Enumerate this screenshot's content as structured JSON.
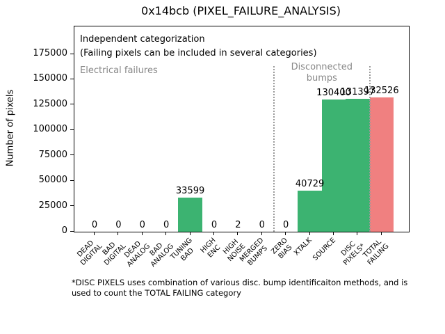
{
  "chart_data": {
    "type": "bar",
    "title": "0x14bcb (PIXEL_FAILURE_ANALYSIS)",
    "xlabel": "",
    "ylabel": "Number of pixels",
    "categories": [
      "DEAD DIGITAL",
      "BAD DIGITAL",
      "DEAD ANALOG",
      "BAD ANALOG",
      "TUNING BAD",
      "HIGH ENC",
      "HIGH NOISE",
      "MERGED BUMPS",
      "ZERO BIAS",
      "XTALK",
      "SOURCE",
      "DISC PIXELS*",
      "TOTAL FAILING"
    ],
    "category_lines": [
      [
        "DEAD",
        "DIGITAL"
      ],
      [
        "BAD",
        "DIGITAL"
      ],
      [
        "DEAD",
        "ANALOG"
      ],
      [
        "BAD",
        "ANALOG"
      ],
      [
        "TUNING",
        "BAD"
      ],
      [
        "HIGH",
        "ENC"
      ],
      [
        "HIGH",
        "NOISE"
      ],
      [
        "MERGED",
        "BUMPS"
      ],
      [
        "ZERO",
        "BIAS"
      ],
      [
        "XTALK"
      ],
      [
        "SOURCE"
      ],
      [
        "DISC",
        "PIXELS*"
      ],
      [
        "TOTAL",
        "FAILING"
      ]
    ],
    "values": [
      0,
      0,
      0,
      0,
      33599,
      0,
      2,
      0,
      0,
      40729,
      130400,
      131397,
      132526
    ],
    "value_labels": [
      "0",
      "0",
      "0",
      "0",
      "33599",
      "0",
      "2",
      "0",
      "0",
      "40729",
      "130400",
      "131397",
      "132526"
    ],
    "bar_colors": [
      "#3cb371",
      "#3cb371",
      "#3cb371",
      "#3cb371",
      "#3cb371",
      "#3cb371",
      "#3cb371",
      "#3cb371",
      "#3cb371",
      "#3cb371",
      "#3cb371",
      "#3cb371",
      "#f08080"
    ],
    "yticks": [
      0,
      25000,
      50000,
      75000,
      100000,
      125000,
      150000,
      175000
    ],
    "ylim": [
      0,
      202500
    ],
    "grid": false,
    "legend": null,
    "separators": [
      7.5,
      11.5
    ],
    "separator_color": "#9a9a9a",
    "annotations": {
      "independent_1": "Independent categorization",
      "independent_2": "(Failing pixels can be included in several categories)",
      "electrical": "Electrical failures",
      "disconnected": "Disconnected\nbumps"
    },
    "footnote_line1": "*DISC PIXELS uses combination of various disc. bump identificaiton methods, and is",
    "footnote_line2": "used to count the TOTAL FAILING category",
    "colors": {
      "bar_green": "#3cb371",
      "bar_red": "#f08080",
      "annotation_gray": "#888888"
    }
  }
}
